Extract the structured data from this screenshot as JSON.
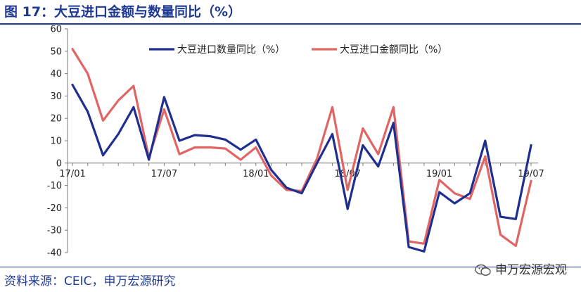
{
  "header": {
    "title": "图 17：大豆进口金额与数量同比（%）"
  },
  "footer": {
    "source": "资料来源：CEIC，申万宏源研究",
    "watermark": "申万宏源宏观"
  },
  "colors": {
    "title": "#1f3a93",
    "quantity": "#1f2f8f",
    "amount": "#e06666"
  },
  "chart_data": {
    "type": "line",
    "title": "",
    "xlabel": "",
    "ylabel": "",
    "ylim": [
      -40,
      60
    ],
    "yticks": [
      60,
      50,
      40,
      30,
      20,
      10,
      0,
      -10,
      -20,
      -30,
      -40
    ],
    "x": [
      "17/01",
      "17/02",
      "17/03",
      "17/04",
      "17/05",
      "17/06",
      "17/07",
      "17/08",
      "17/09",
      "17/10",
      "17/11",
      "17/12",
      "18/01",
      "18/02",
      "18/03",
      "18/04",
      "18/05",
      "18/06",
      "18/07",
      "18/08",
      "18/09",
      "18/10",
      "18/11",
      "18/12",
      "19/01",
      "19/02",
      "19/03",
      "19/04",
      "19/05",
      "19/06",
      "19/07"
    ],
    "xtick_labels": [
      "17/01",
      "17/07",
      "18/01",
      "18/07",
      "19/01",
      "19/07"
    ],
    "legend_position": "top-center",
    "grid": false,
    "series": [
      {
        "name": "大豆进口数量同比（%）",
        "color": "#1f2f8f",
        "values": [
          35,
          23,
          3.5,
          13,
          25,
          1.5,
          29.5,
          10,
          12.5,
          12,
          10.5,
          6,
          10.5,
          -3,
          -11,
          -13.5,
          0,
          13,
          -20.5,
          8,
          -1.5,
          18,
          -37.5,
          -39.5,
          -13,
          -18,
          -13.5,
          10,
          -24,
          -25,
          8
        ]
      },
      {
        "name": "大豆进口金额同比（%）",
        "color": "#e06666",
        "values": [
          51,
          40,
          19,
          28,
          34.5,
          2.5,
          24,
          4,
          7,
          7,
          6.5,
          1.5,
          7,
          -5.5,
          -12,
          -12.5,
          2,
          25,
          -12,
          15.5,
          4,
          25,
          -35,
          -36,
          -7.5,
          -13.5,
          -16,
          3,
          -32,
          -37,
          -8
        ]
      }
    ]
  }
}
